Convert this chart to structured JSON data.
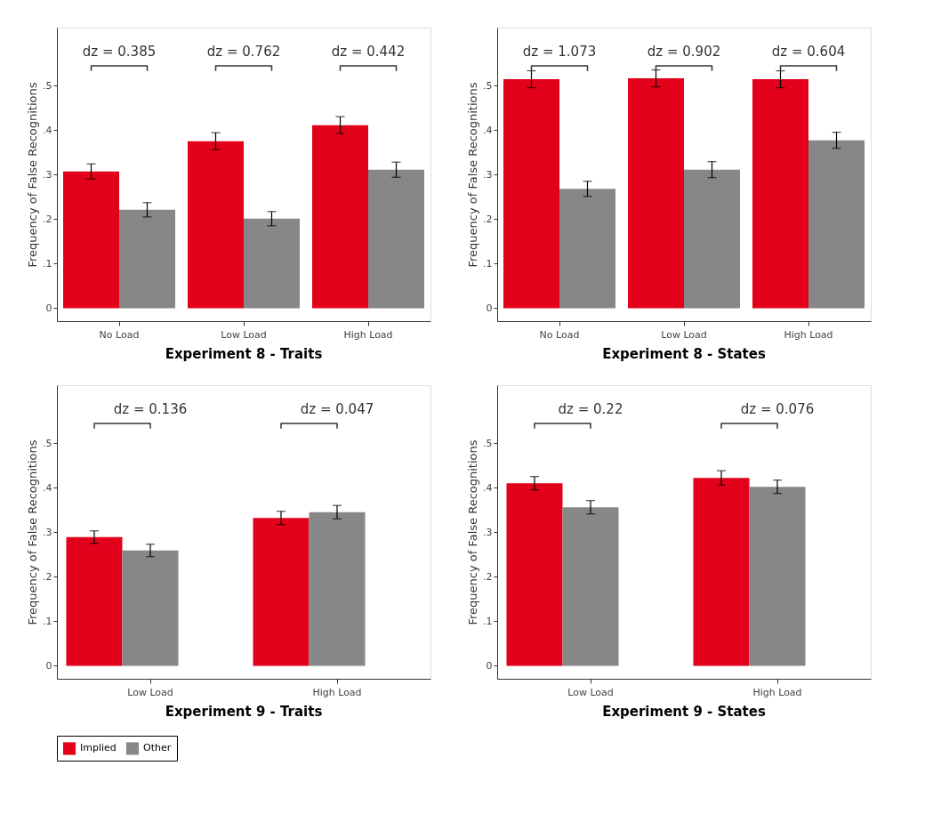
{
  "chart_data": [
    {
      "type": "bar",
      "title": "Experiment 8 - Traits",
      "ylabel": "Frequency of False Recognitions",
      "categories": [
        "No Load",
        "Low Load",
        "High Load"
      ],
      "series": [
        {
          "name": "Implied",
          "color": "#e2001a",
          "values": [
            0.307,
            0.375,
            0.411
          ],
          "errors": [
            0.017,
            0.019,
            0.019
          ]
        },
        {
          "name": "Other",
          "color": "#878787",
          "values": [
            0.221,
            0.201,
            0.311
          ],
          "errors": [
            0.016,
            0.016,
            0.017
          ]
        }
      ],
      "ylim": [
        -0.029,
        0.63
      ],
      "yticks": [
        {
          "value": 0,
          "label": "0"
        },
        {
          "value": 0.1,
          "label": ".1"
        },
        {
          "value": 0.2,
          "label": ".2"
        },
        {
          "value": 0.3,
          "label": ".3"
        },
        {
          "value": 0.4,
          "label": ".4"
        },
        {
          "value": 0.5,
          "label": ".5"
        }
      ],
      "annotations": [
        "dz = 0.385",
        "dz = 0.762",
        "dz = 0.442"
      ],
      "grid": false,
      "legend": "bottom"
    },
    {
      "type": "bar",
      "title": "Experiment 8 - States",
      "ylabel": "Frequency of False Recognitions",
      "categories": [
        "No Load",
        "Low Load",
        "High Load"
      ],
      "series": [
        {
          "name": "Implied",
          "color": "#e2001a",
          "values": [
            0.514,
            0.516,
            0.514
          ],
          "errors": [
            0.019,
            0.019,
            0.019
          ]
        },
        {
          "name": "Other",
          "color": "#878787",
          "values": [
            0.268,
            0.311,
            0.377
          ],
          "errors": [
            0.017,
            0.018,
            0.018
          ]
        }
      ],
      "ylim": [
        -0.029,
        0.63
      ],
      "yticks": [
        {
          "value": 0,
          "label": "0"
        },
        {
          "value": 0.1,
          "label": ".1"
        },
        {
          "value": 0.2,
          "label": ".2"
        },
        {
          "value": 0.3,
          "label": ".3"
        },
        {
          "value": 0.4,
          "label": ".4"
        },
        {
          "value": 0.5,
          "label": ".5"
        }
      ],
      "annotations": [
        "dz = 1.073",
        "dz = 0.902",
        "dz = 0.604"
      ],
      "grid": false,
      "legend": "bottom"
    },
    {
      "type": "bar",
      "title": "Experiment 9 - Traits",
      "ylabel": "Frequency of False Recognitions",
      "categories": [
        "Low Load",
        "High Load"
      ],
      "series": [
        {
          "name": "Implied",
          "color": "#e2001a",
          "values": [
            0.289,
            0.332
          ],
          "errors": [
            0.014,
            0.015
          ]
        },
        {
          "name": "Other",
          "color": "#878787",
          "values": [
            0.259,
            0.345
          ],
          "errors": [
            0.014,
            0.015
          ]
        }
      ],
      "ylim": [
        -0.029,
        0.63
      ],
      "yticks": [
        {
          "value": 0,
          "label": "0"
        },
        {
          "value": 0.1,
          "label": ".1"
        },
        {
          "value": 0.2,
          "label": ".2"
        },
        {
          "value": 0.3,
          "label": ".3"
        },
        {
          "value": 0.4,
          "label": ".4"
        },
        {
          "value": 0.5,
          "label": ".5"
        }
      ],
      "annotations": [
        "dz = 0.136",
        "dz = 0.047"
      ],
      "grid": false,
      "legend": "bottom"
    },
    {
      "type": "bar",
      "title": "Experiment 9 - States",
      "ylabel": "Frequency of False Recognitions",
      "categories": [
        "Low Load",
        "High Load"
      ],
      "series": [
        {
          "name": "Implied",
          "color": "#e2001a",
          "values": [
            0.41,
            0.422
          ],
          "errors": [
            0.015,
            0.016
          ]
        },
        {
          "name": "Other",
          "color": "#878787",
          "values": [
            0.356,
            0.402
          ],
          "errors": [
            0.015,
            0.015
          ]
        }
      ],
      "ylim": [
        -0.029,
        0.63
      ],
      "yticks": [
        {
          "value": 0,
          "label": "0"
        },
        {
          "value": 0.1,
          "label": ".1"
        },
        {
          "value": 0.2,
          "label": ".2"
        },
        {
          "value": 0.3,
          "label": ".3"
        },
        {
          "value": 0.4,
          "label": ".4"
        },
        {
          "value": 0.5,
          "label": ".5"
        }
      ],
      "annotations": [
        "dz = 0.22",
        "dz = 0.076"
      ],
      "grid": false,
      "legend": "bottom"
    }
  ]
}
